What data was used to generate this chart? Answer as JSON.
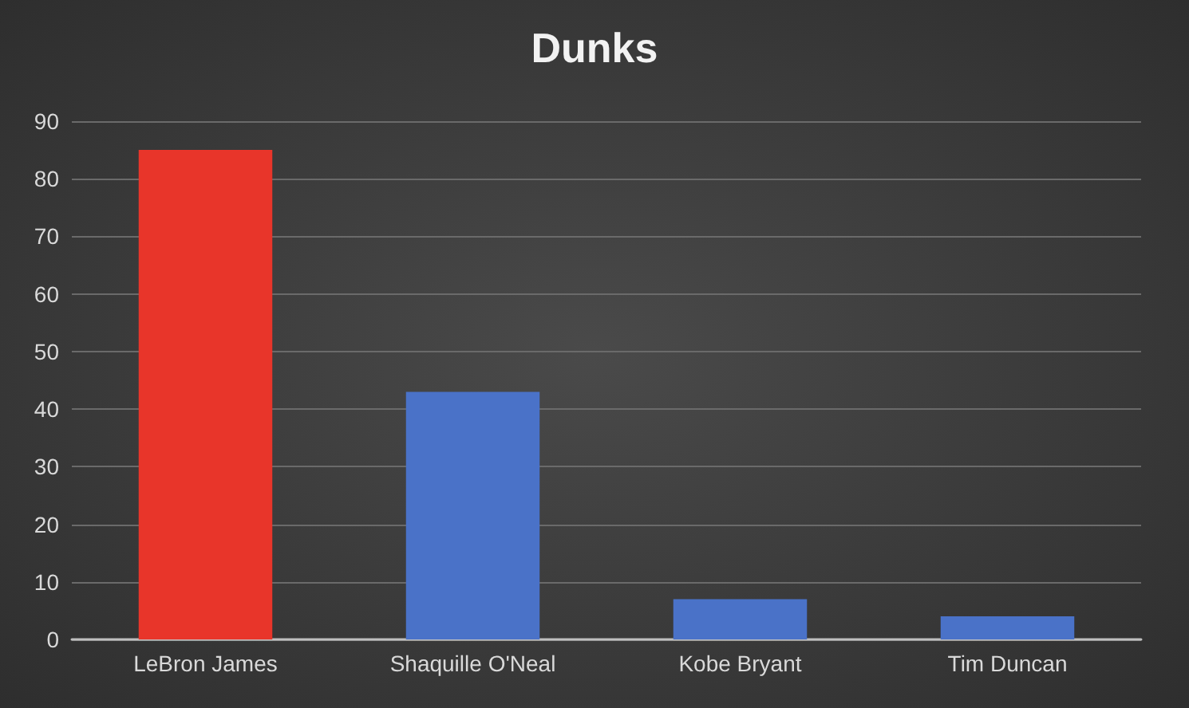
{
  "chart_data": {
    "type": "bar",
    "title": "Dunks",
    "categories": [
      "LeBron James",
      "Shaquille O'Neal",
      "Kobe Bryant",
      "Tim Duncan"
    ],
    "values": [
      85,
      43,
      7,
      4
    ],
    "colors": [
      "#e8352a",
      "#4a72c8",
      "#4a72c8",
      "#4a72c8"
    ],
    "ylim": [
      0,
      90
    ],
    "yticks": [
      0,
      10,
      20,
      30,
      40,
      50,
      60,
      70,
      80,
      90
    ],
    "grid": "y"
  }
}
